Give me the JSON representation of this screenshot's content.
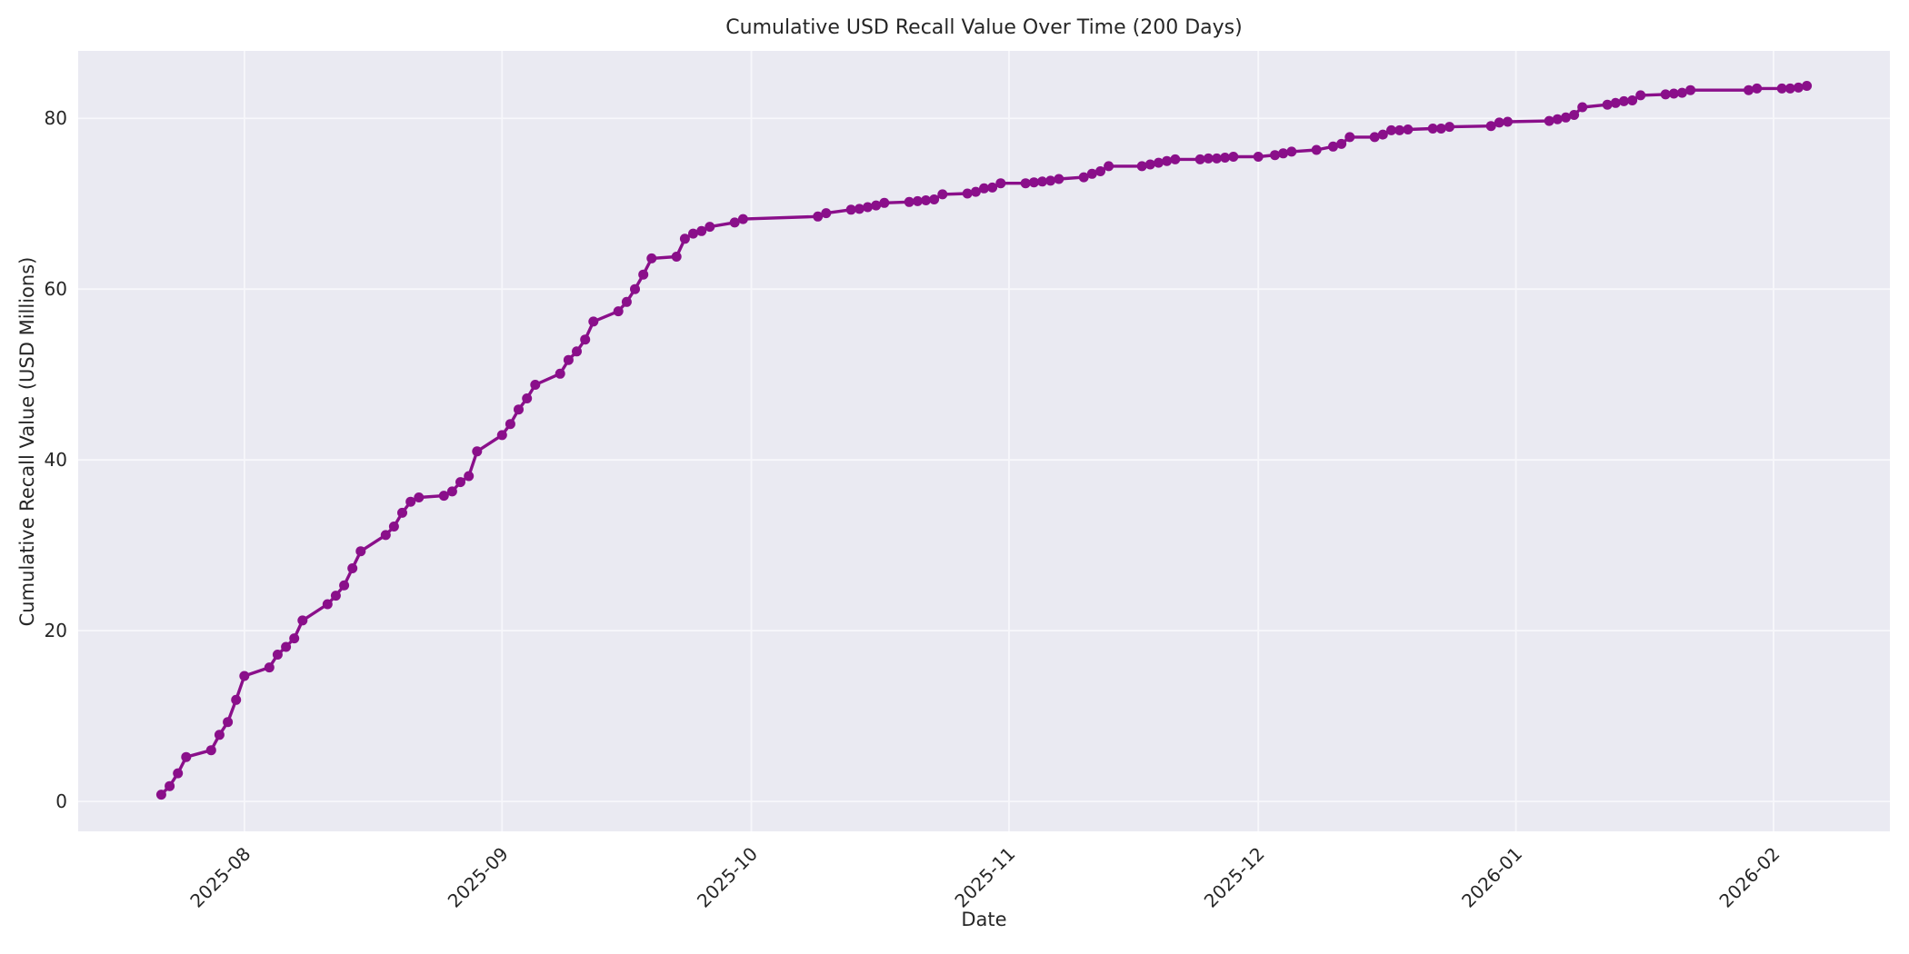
{
  "figure": {
    "background": "#ffffff"
  },
  "chart_data": {
    "type": "line",
    "title": "Cumulative USD Recall Value Over Time (200 Days)",
    "xlabel": "Date",
    "ylabel": "Cumulative Recall Value (USD Millions)",
    "legend": "none",
    "grid": "on",
    "plot_background": "#eaeaf2",
    "grid_color": "#f7f7fb",
    "line_color": "#8a0f8a",
    "marker": "circle",
    "marker_radius": 5.5,
    "line_width": 3.4,
    "text_color": "#262626",
    "ylim": [
      -3.5,
      87.9
    ],
    "y_ticks": [
      0,
      20,
      40,
      60,
      80
    ],
    "xlim": [
      "2025-07-12",
      "2026-02-15"
    ],
    "x_ticks": [
      {
        "date": "2025-08-01",
        "label": "2025-08"
      },
      {
        "date": "2025-09-01",
        "label": "2025-09"
      },
      {
        "date": "2025-10-01",
        "label": "2025-10"
      },
      {
        "date": "2025-11-01",
        "label": "2025-11"
      },
      {
        "date": "2025-12-01",
        "label": "2025-12"
      },
      {
        "date": "2026-01-01",
        "label": "2026-01"
      },
      {
        "date": "2026-02-01",
        "label": "2026-02"
      }
    ],
    "series": [
      {
        "name": "Cumulative Recall Value (USD Millions)",
        "points": [
          [
            "2025-07-22",
            0.8
          ],
          [
            "2025-07-23",
            1.8
          ],
          [
            "2025-07-24",
            3.3
          ],
          [
            "2025-07-25",
            5.2
          ],
          [
            "2025-07-28",
            6.0
          ],
          [
            "2025-07-29",
            7.8
          ],
          [
            "2025-07-30",
            9.3
          ],
          [
            "2025-07-31",
            11.9
          ],
          [
            "2025-08-01",
            14.7
          ],
          [
            "2025-08-04",
            15.7
          ],
          [
            "2025-08-05",
            17.2
          ],
          [
            "2025-08-06",
            18.1
          ],
          [
            "2025-08-07",
            19.1
          ],
          [
            "2025-08-08",
            21.2
          ],
          [
            "2025-08-11",
            23.1
          ],
          [
            "2025-08-12",
            24.1
          ],
          [
            "2025-08-13",
            25.3
          ],
          [
            "2025-08-14",
            27.3
          ],
          [
            "2025-08-15",
            29.3
          ],
          [
            "2025-08-18",
            31.2
          ],
          [
            "2025-08-19",
            32.2
          ],
          [
            "2025-08-20",
            33.8
          ],
          [
            "2025-08-21",
            35.1
          ],
          [
            "2025-08-22",
            35.6
          ],
          [
            "2025-08-25",
            35.8
          ],
          [
            "2025-08-26",
            36.3
          ],
          [
            "2025-08-27",
            37.4
          ],
          [
            "2025-08-28",
            38.1
          ],
          [
            "2025-08-29",
            41.0
          ],
          [
            "2025-09-01",
            42.9
          ],
          [
            "2025-09-02",
            44.2
          ],
          [
            "2025-09-03",
            45.9
          ],
          [
            "2025-09-04",
            47.2
          ],
          [
            "2025-09-05",
            48.8
          ],
          [
            "2025-09-08",
            50.1
          ],
          [
            "2025-09-09",
            51.7
          ],
          [
            "2025-09-10",
            52.7
          ],
          [
            "2025-09-11",
            54.1
          ],
          [
            "2025-09-12",
            56.2
          ],
          [
            "2025-09-15",
            57.4
          ],
          [
            "2025-09-16",
            58.5
          ],
          [
            "2025-09-17",
            60.0
          ],
          [
            "2025-09-18",
            61.7
          ],
          [
            "2025-09-19",
            63.6
          ],
          [
            "2025-09-22",
            63.8
          ],
          [
            "2025-09-23",
            65.9
          ],
          [
            "2025-09-24",
            66.5
          ],
          [
            "2025-09-25",
            66.8
          ],
          [
            "2025-09-26",
            67.3
          ],
          [
            "2025-09-29",
            67.8
          ],
          [
            "2025-09-30",
            68.2
          ],
          [
            "2025-10-09",
            68.5
          ],
          [
            "2025-10-10",
            68.9
          ],
          [
            "2025-10-13",
            69.3
          ],
          [
            "2025-10-14",
            69.4
          ],
          [
            "2025-10-15",
            69.6
          ],
          [
            "2025-10-16",
            69.8
          ],
          [
            "2025-10-17",
            70.1
          ],
          [
            "2025-10-20",
            70.2
          ],
          [
            "2025-10-21",
            70.3
          ],
          [
            "2025-10-22",
            70.4
          ],
          [
            "2025-10-23",
            70.5
          ],
          [
            "2025-10-24",
            71.1
          ],
          [
            "2025-10-27",
            71.2
          ],
          [
            "2025-10-28",
            71.4
          ],
          [
            "2025-10-29",
            71.8
          ],
          [
            "2025-10-30",
            71.9
          ],
          [
            "2025-10-31",
            72.4
          ],
          [
            "2025-11-03",
            72.4
          ],
          [
            "2025-11-04",
            72.5
          ],
          [
            "2025-11-05",
            72.6
          ],
          [
            "2025-11-06",
            72.7
          ],
          [
            "2025-11-07",
            72.9
          ],
          [
            "2025-11-10",
            73.1
          ],
          [
            "2025-11-11",
            73.5
          ],
          [
            "2025-11-12",
            73.8
          ],
          [
            "2025-11-13",
            74.4
          ],
          [
            "2025-11-17",
            74.4
          ],
          [
            "2025-11-18",
            74.6
          ],
          [
            "2025-11-19",
            74.8
          ],
          [
            "2025-11-20",
            75.0
          ],
          [
            "2025-11-21",
            75.2
          ],
          [
            "2025-11-24",
            75.2
          ],
          [
            "2025-11-25",
            75.3
          ],
          [
            "2025-11-26",
            75.3
          ],
          [
            "2025-11-27",
            75.4
          ],
          [
            "2025-11-28",
            75.5
          ],
          [
            "2025-12-01",
            75.5
          ],
          [
            "2025-12-03",
            75.7
          ],
          [
            "2025-12-04",
            75.9
          ],
          [
            "2025-12-05",
            76.1
          ],
          [
            "2025-12-08",
            76.3
          ],
          [
            "2025-12-10",
            76.7
          ],
          [
            "2025-12-11",
            77.0
          ],
          [
            "2025-12-12",
            77.8
          ],
          [
            "2025-12-15",
            77.8
          ],
          [
            "2025-12-16",
            78.1
          ],
          [
            "2025-12-17",
            78.6
          ],
          [
            "2025-12-18",
            78.6
          ],
          [
            "2025-12-19",
            78.7
          ],
          [
            "2025-12-22",
            78.8
          ],
          [
            "2025-12-23",
            78.8
          ],
          [
            "2025-12-24",
            79.0
          ],
          [
            "2025-12-29",
            79.1
          ],
          [
            "2025-12-30",
            79.5
          ],
          [
            "2025-12-31",
            79.6
          ],
          [
            "2026-01-05",
            79.7
          ],
          [
            "2026-01-06",
            79.9
          ],
          [
            "2026-01-07",
            80.1
          ],
          [
            "2026-01-08",
            80.4
          ],
          [
            "2026-01-09",
            81.3
          ],
          [
            "2026-01-12",
            81.6
          ],
          [
            "2026-01-13",
            81.8
          ],
          [
            "2026-01-14",
            82.0
          ],
          [
            "2026-01-15",
            82.1
          ],
          [
            "2026-01-16",
            82.7
          ],
          [
            "2026-01-19",
            82.8
          ],
          [
            "2026-01-20",
            82.9
          ],
          [
            "2026-01-21",
            83.0
          ],
          [
            "2026-01-22",
            83.3
          ],
          [
            "2026-01-29",
            83.3
          ],
          [
            "2026-01-30",
            83.5
          ],
          [
            "2026-02-02",
            83.5
          ],
          [
            "2026-02-03",
            83.5
          ],
          [
            "2026-02-04",
            83.6
          ],
          [
            "2026-02-05",
            83.8
          ]
        ]
      }
    ]
  }
}
